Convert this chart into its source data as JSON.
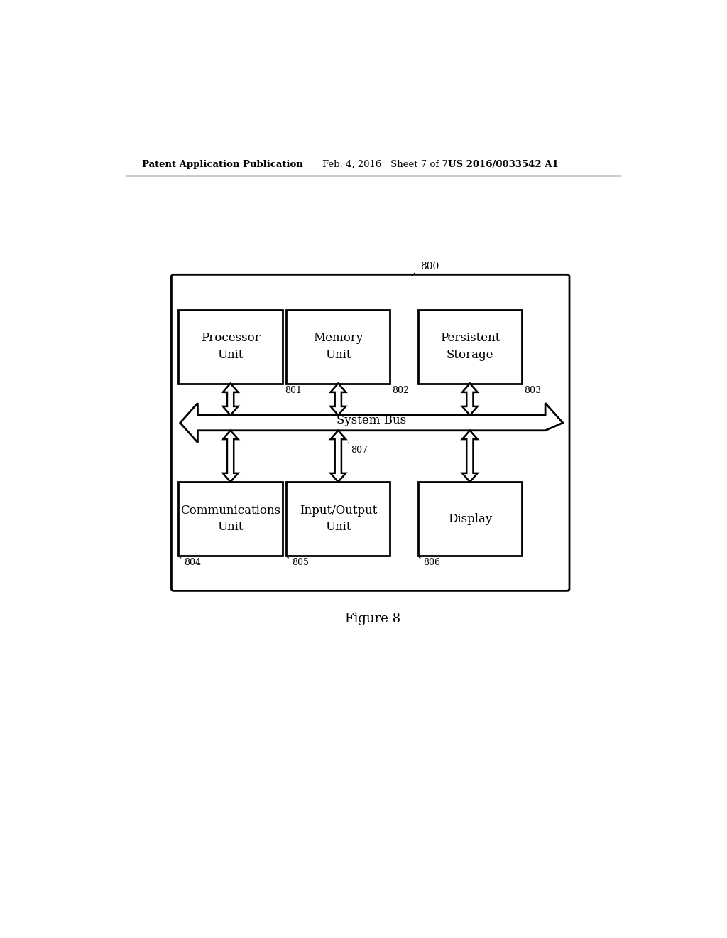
{
  "header_left": "Patent Application Publication",
  "header_mid": "Feb. 4, 2016   Sheet 7 of 7",
  "header_right": "US 2016/0033542 A1",
  "figure_label": "Figure 8",
  "diagram_label": "800",
  "background_color": "#ffffff",
  "line_color": "#000000",
  "bus_label": "System Bus",
  "bus_id": "807",
  "top_labels": [
    "Processor\nUnit",
    "Memory\nUnit",
    "Persistent\nStorage"
  ],
  "top_ids": [
    "801",
    "802",
    "803"
  ],
  "bot_labels": [
    "Communications\nUnit",
    "Input/Output\nUnit",
    "Display"
  ],
  "bot_ids": [
    "804",
    "805",
    "806"
  ]
}
